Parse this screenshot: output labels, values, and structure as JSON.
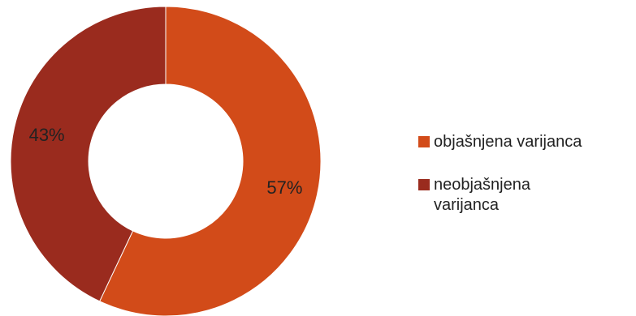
{
  "chart_data": {
    "type": "pie",
    "variant": "donut",
    "title": "",
    "slices": [
      {
        "label": "objašnjena varijanca",
        "value": 57,
        "value_label": "57%",
        "color": "#d24b19"
      },
      {
        "label": "neobjašnjena varijanca",
        "value": 43,
        "value_label": "43%",
        "color": "#9a2b1e"
      }
    ],
    "legend": {
      "placement": "right",
      "items": [
        {
          "lines": [
            "objašnjena varijanca"
          ],
          "color": "#d24b19"
        },
        {
          "lines": [
            "neobjašnjena",
            "varijanca"
          ],
          "color": "#9a2b1e"
        }
      ]
    }
  }
}
